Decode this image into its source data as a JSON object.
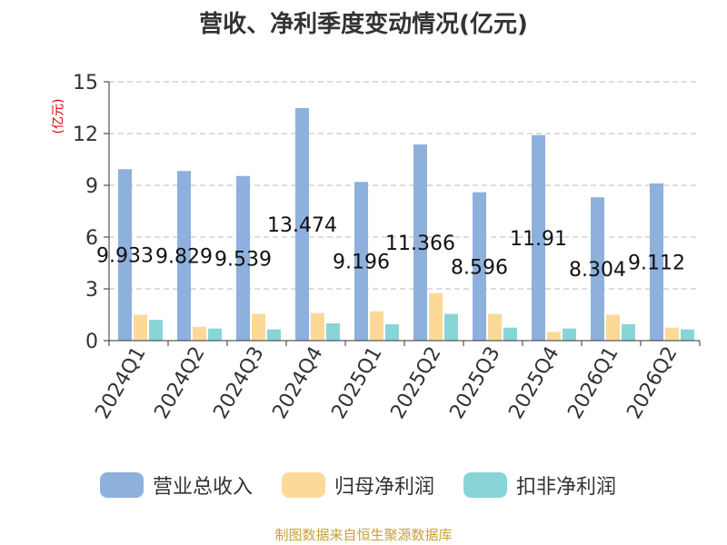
{
  "chart_data": {
    "type": "bar",
    "title": "营收、净利季度变动情况(亿元)",
    "ylabel": "(亿元)",
    "xlabel": "",
    "ylim": [
      0,
      15
    ],
    "yticks": [
      0,
      3,
      6,
      9,
      12,
      15
    ],
    "grid": true,
    "legend_position": "bottom",
    "categories": [
      "2024Q1",
      "2024Q2",
      "2024Q3",
      "2024Q4",
      "2025Q1",
      "2025Q2",
      "2025Q3",
      "2025Q4",
      "2026Q1",
      "2026Q2"
    ],
    "series": [
      {
        "name": "营业总收入",
        "color": "#8eb0dc",
        "values": [
          9.933,
          9.829,
          9.539,
          13.474,
          9.196,
          11.366,
          8.596,
          11.91,
          8.304,
          9.112
        ],
        "data_labels": [
          "9.933",
          "9.829",
          "9.539",
          "13.474",
          "9.196",
          "11.366",
          "8.596",
          "11.91",
          "8.304",
          "9.112"
        ]
      },
      {
        "name": "归母净利润",
        "color": "#fdd998",
        "values": [
          1.5,
          0.8,
          1.55,
          1.6,
          1.7,
          2.75,
          1.55,
          0.5,
          1.5,
          0.75
        ]
      },
      {
        "name": "扣非净利润",
        "color": "#88d5d8",
        "values": [
          1.2,
          0.7,
          0.65,
          1.0,
          0.95,
          1.55,
          0.75,
          0.7,
          0.95,
          0.65
        ]
      }
    ]
  },
  "source": "制图数据来自恒生聚源数据库"
}
